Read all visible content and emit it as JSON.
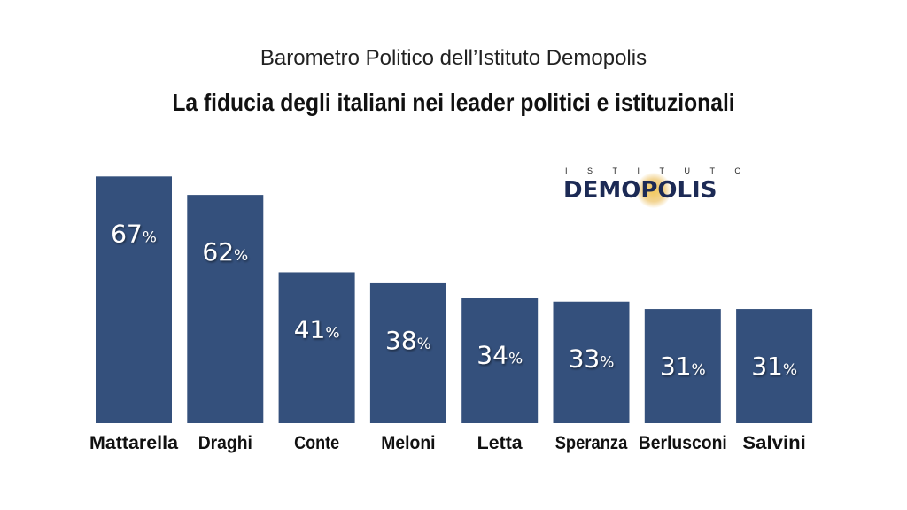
{
  "header": {
    "subtitle": "Barometro Politico dell’Istituto Demopolis",
    "title": "La fiducia degli italiani nei leader politici e istituzionali"
  },
  "logo": {
    "top_text": "ISTITUTO",
    "main_text": "DEMOPOLIS"
  },
  "colors": {
    "bar": "#34507c",
    "label": "#ffffff",
    "category": "#111111"
  },
  "chart_data": {
    "type": "bar",
    "categories": [
      "Mattarella",
      "Draghi",
      "Conte",
      "Meloni",
      "Letta",
      "Speranza",
      "Berlusconi",
      "Salvini"
    ],
    "values": [
      67,
      62,
      41,
      38,
      34,
      33,
      31,
      31
    ],
    "value_suffix": "%",
    "ylim": [
      0,
      69
    ]
  }
}
